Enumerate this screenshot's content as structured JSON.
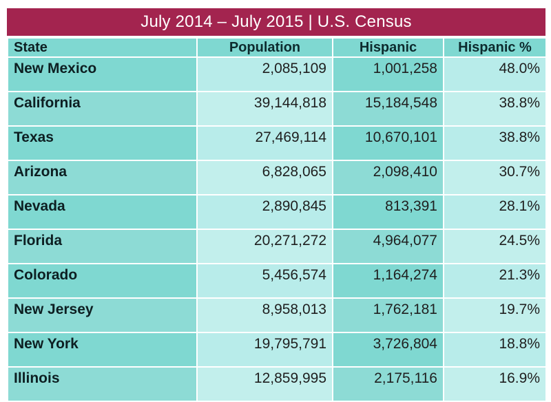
{
  "title": "July 2014 – July 2015 | U.S. Census",
  "colors": {
    "header_bg": "#a3244f",
    "teal_dark": "#7fd8d1",
    "teal_light": "#b8ecea"
  },
  "table": {
    "headers": [
      "State",
      "Population",
      "Hispanic",
      "Hispanic %"
    ],
    "rows": [
      [
        "New Mexico",
        "2,085,109",
        "1,001,258",
        "48.0%"
      ],
      [
        "California",
        "39,144,818",
        "15,184,548",
        "38.8%"
      ],
      [
        "Texas",
        "27,469,114",
        "10,670,101",
        "38.8%"
      ],
      [
        "Arizona",
        "6,828,065",
        "2,098,410",
        "30.7%"
      ],
      [
        "Nevada",
        "2,890,845",
        "813,391",
        "28.1%"
      ],
      [
        "Florida",
        "20,271,272",
        "4,964,077",
        "24.5%"
      ],
      [
        "Colorado",
        "5,456,574",
        "1,164,274",
        "21.3%"
      ],
      [
        "New Jersey",
        "8,958,013",
        "1,762,181",
        "19.7%"
      ],
      [
        "New York",
        "19,795,791",
        "3,726,804",
        "18.8%"
      ],
      [
        "Illinois",
        "12,859,995",
        "2,175,116",
        "16.9%"
      ]
    ]
  }
}
